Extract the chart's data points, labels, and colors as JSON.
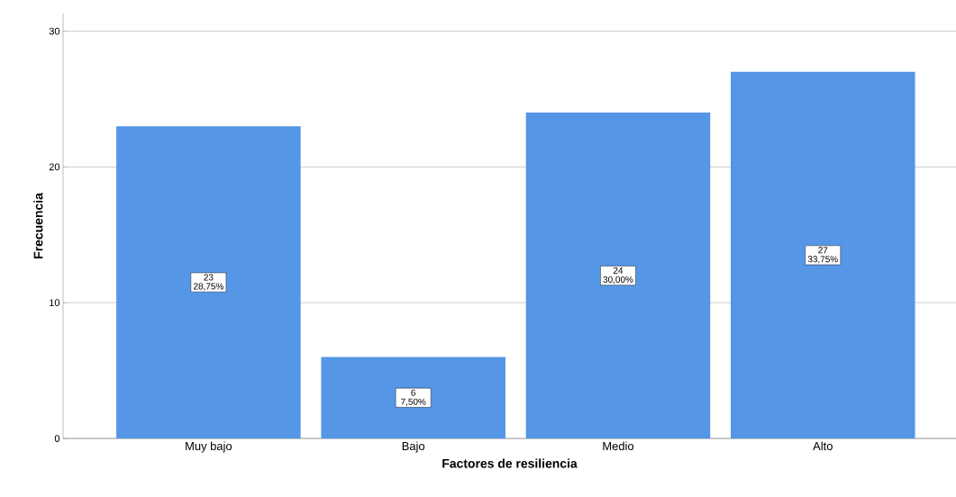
{
  "chart_data": {
    "type": "bar",
    "xlabel": "Factores de resiliencia",
    "ylabel": "Frecuencia",
    "categories": [
      "Muy bajo",
      "Bajo",
      "Medio",
      "Alto"
    ],
    "values": [
      23,
      6,
      24,
      27
    ],
    "color": "#5596e6",
    "value_labels": [
      "23 28,75%",
      "6 7,50%",
      "24 30,00%",
      "27 33,75%"
    ],
    "ylim": [
      0,
      31.3
    ],
    "yticks": [
      0,
      10,
      20,
      30
    ],
    "grid": "y"
  }
}
